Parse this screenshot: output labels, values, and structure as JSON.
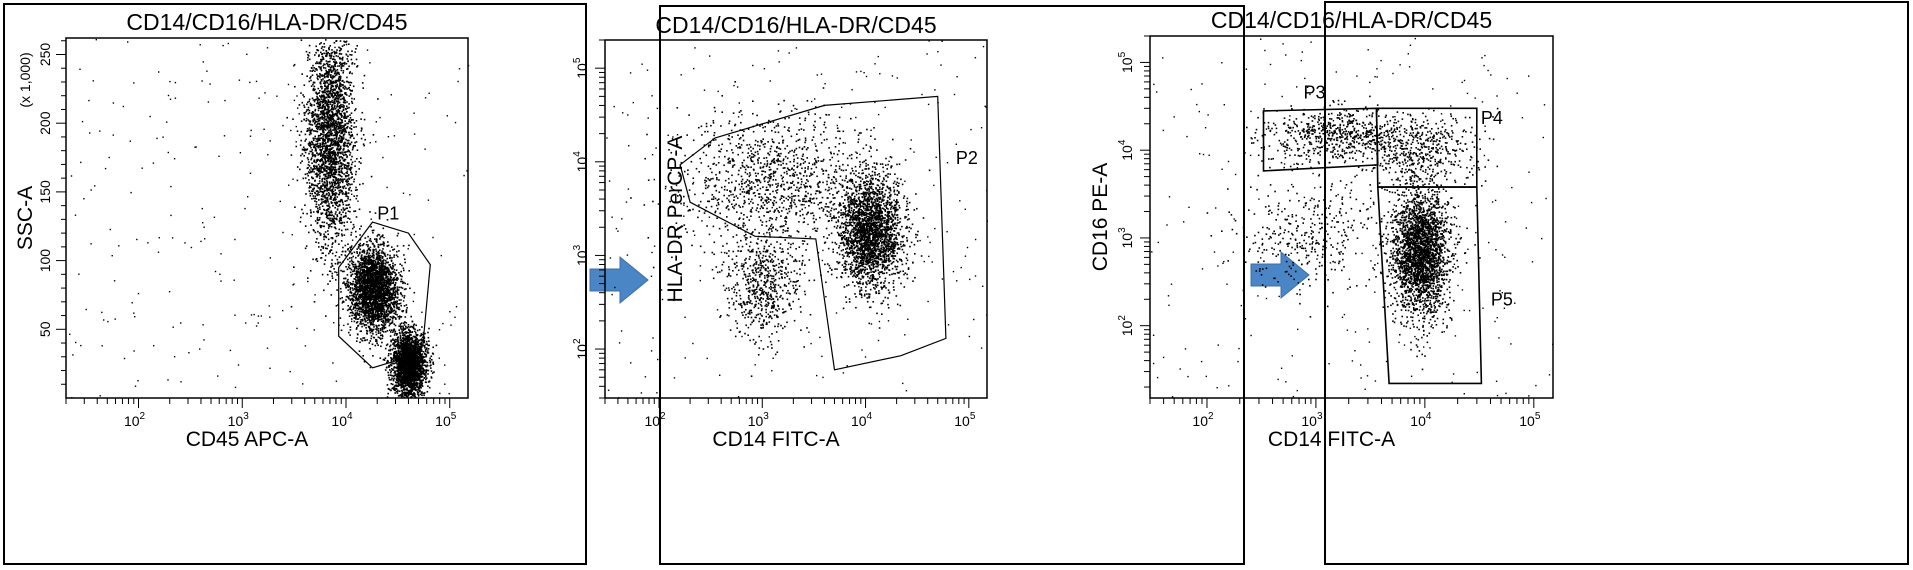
{
  "panels": [
    {
      "title": "CD14/CD16/HLA-DR/CD45",
      "xlabel": "CD45 APC-A",
      "ylabel": "SSC-A",
      "ymultiplier": "(x 1,000)",
      "xticks": [
        {
          "base": "10",
          "exp": "2"
        },
        {
          "base": "10",
          "exp": "3"
        },
        {
          "base": "10",
          "exp": "4"
        },
        {
          "base": "10",
          "exp": "5"
        }
      ],
      "yticks": [
        "50",
        "100",
        "150",
        "200",
        "250"
      ],
      "gates": [
        {
          "name": "P1"
        }
      ]
    },
    {
      "title": "CD14/CD16/HLA-DR/CD45",
      "xlabel": "CD14 FITC-A",
      "ylabel": "HLA-DR PerCP-A",
      "xticks": [
        {
          "base": "10",
          "exp": "2"
        },
        {
          "base": "10",
          "exp": "3"
        },
        {
          "base": "10",
          "exp": "4"
        },
        {
          "base": "10",
          "exp": "5"
        }
      ],
      "yticks": [
        {
          "base": "10",
          "exp": "2"
        },
        {
          "base": "10",
          "exp": "3"
        },
        {
          "base": "10",
          "exp": "4"
        },
        {
          "base": "10",
          "exp": "5"
        }
      ],
      "gates": [
        {
          "name": "P2"
        }
      ]
    },
    {
      "title": "CD14/CD16/HLA-DR/CD45",
      "xlabel": "CD14 FITC-A",
      "ylabel": "CD16 PE-A",
      "xticks": [
        {
          "base": "10",
          "exp": "2"
        },
        {
          "base": "10",
          "exp": "3"
        },
        {
          "base": "10",
          "exp": "4"
        },
        {
          "base": "10",
          "exp": "5"
        }
      ],
      "yticks": [
        {
          "base": "10",
          "exp": "2"
        },
        {
          "base": "10",
          "exp": "3"
        },
        {
          "base": "10",
          "exp": "4"
        },
        {
          "base": "10",
          "exp": "5"
        }
      ],
      "gates": [
        {
          "name": "P3"
        },
        {
          "name": "P4"
        },
        {
          "name": "P5"
        }
      ]
    }
  ],
  "chart_data": [
    {
      "type": "scatter",
      "title": "CD14/CD16/HLA-DR/CD45",
      "xlabel": "CD45 APC-A",
      "ylabel": "SSC-A",
      "x_scale": "log",
      "y_scale": "linear",
      "xlim": [
        20,
        150000
      ],
      "ylim": [
        0,
        262
      ],
      "populations": [
        {
          "x_center": 7000,
          "y_center": 190,
          "spread_x_log": 0.12,
          "spread_y": 40
        },
        {
          "x_center": 18000,
          "y_center": 80,
          "spread_x_log": 0.12,
          "spread_y": 15
        },
        {
          "x_center": 40000,
          "y_center": 25,
          "spread_x_log": 0.08,
          "spread_y": 12
        }
      ],
      "gates": [
        {
          "name": "P1",
          "vertices": [
            [
              8500,
              95
            ],
            [
              18000,
              128
            ],
            [
              40000,
              120
            ],
            [
              65000,
              97
            ],
            [
              55000,
              38
            ],
            [
              30000,
              27
            ],
            [
              18000,
              22
            ],
            [
              8500,
              45
            ]
          ]
        }
      ]
    },
    {
      "type": "scatter",
      "title": "CD14/CD16/HLA-DR/CD45",
      "xlabel": "CD14 FITC-A",
      "ylabel": "HLA-DR PerCP-A",
      "x_scale": "log",
      "y_scale": "log",
      "xlim": [
        30,
        150000
      ],
      "ylim": [
        30,
        200000
      ],
      "populations": [
        {
          "x_center": 11000,
          "y_center": 1800,
          "spread_x_log": 0.16,
          "spread_y_log": 0.3
        },
        {
          "x_center": 1300,
          "y_center": 6500,
          "spread_x_log": 0.45,
          "spread_y_log": 0.35
        },
        {
          "x_center": 1000,
          "y_center": 500,
          "spread_x_log": 0.18,
          "spread_y_log": 0.3
        }
      ],
      "gates": [
        {
          "name": "P2",
          "vertices": [
            [
              350,
              18000
            ],
            [
              4000,
              40000
            ],
            [
              50000,
              50000
            ],
            [
              60000,
              130
            ],
            [
              22000,
              85
            ],
            [
              5000,
              60
            ],
            [
              3300,
              1500
            ],
            [
              850,
              1600
            ],
            [
              200,
              3700
            ],
            [
              160,
              9300
            ]
          ]
        }
      ]
    },
    {
      "type": "scatter",
      "title": "CD14/CD16/HLA-DR/CD45",
      "xlabel": "CD14 FITC-A",
      "ylabel": "CD16 PE-A",
      "x_scale": "log",
      "y_scale": "log",
      "xlim": [
        30,
        150000
      ],
      "ylim": [
        15,
        200000
      ],
      "populations": [
        {
          "x_center": 1500,
          "y_center": 15000,
          "spread_x_log": 0.35,
          "spread_y_log": 0.15
        },
        {
          "x_center": 9000,
          "y_center": 10000,
          "spread_x_log": 0.25,
          "spread_y_log": 0.2
        },
        {
          "x_center": 9000,
          "y_center": 700,
          "spread_x_log": 0.13,
          "spread_y_log": 0.35
        },
        {
          "x_center": 850,
          "y_center": 1100,
          "spread_x_log": 0.35,
          "spread_y_log": 0.3
        }
      ],
      "gates": [
        {
          "name": "P3",
          "vertices": [
            [
              330,
              28000
            ],
            [
              3600,
              30000
            ],
            [
              3700,
              6800
            ],
            [
              330,
              5800
            ]
          ]
        },
        {
          "name": "P4",
          "vertices": [
            [
              3600,
              30000
            ],
            [
              30000,
              30000
            ],
            [
              30000,
              3800
            ],
            [
              3700,
              3800
            ]
          ]
        },
        {
          "name": "P5",
          "vertices": [
            [
              3700,
              3800
            ],
            [
              30000,
              3800
            ],
            [
              33000,
              22
            ],
            [
              4700,
              22
            ]
          ]
        }
      ]
    }
  ]
}
